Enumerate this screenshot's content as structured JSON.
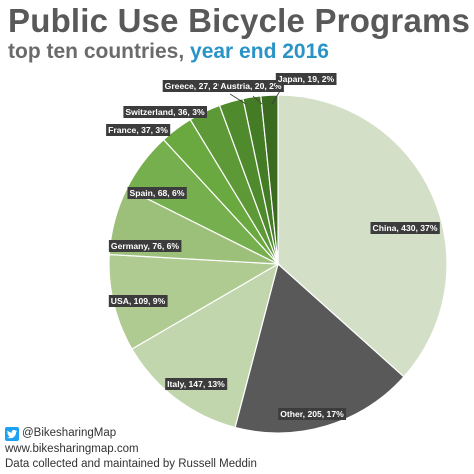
{
  "header": {
    "title": "Public Use Bicycle Programs",
    "subtitle_main": "top ten countries, ",
    "subtitle_highlight": "year end 2016"
  },
  "footer": {
    "twitter_handle": "@BikesharingMap",
    "website": "www.bikesharingmap.com",
    "credit": "Data collected and maintained by Russell Meddin"
  },
  "colors": {
    "title": "#595959",
    "highlight": "#2a94c6",
    "label_bg": "#3c3c3c",
    "twitter": "#1da1f2"
  },
  "chart_data": {
    "type": "pie",
    "title": "Public Use Bicycle Programs",
    "subtitle": "top ten countries, year end 2016",
    "start": "12 o'clock",
    "direction": "clockwise",
    "slices": [
      {
        "category": "China",
        "value": 430,
        "percent": 37,
        "label": "China, 430, 37%",
        "color": "#d3dfc6"
      },
      {
        "category": "Other",
        "value": 205,
        "percent": 17,
        "label": "Other, 205, 17%",
        "color": "#595959"
      },
      {
        "category": "Italy",
        "value": 147,
        "percent": 13,
        "label": "Italy, 147, 13%",
        "color": "#c2d6ae"
      },
      {
        "category": "USA",
        "value": 109,
        "percent": 9,
        "label": "USA, 109, 9%",
        "color": "#afcb91"
      },
      {
        "category": "Germany",
        "value": 76,
        "percent": 6,
        "label": "Germany, 76, 6%",
        "color": "#9cbf7a"
      },
      {
        "category": "Spain",
        "value": 68,
        "percent": 6,
        "label": "Spain, 68, 6%",
        "color": "#76af4d"
      },
      {
        "category": "France",
        "value": 37,
        "percent": 3,
        "label": "France, 37, 3%",
        "color": "#6aa840"
      },
      {
        "category": "Switzerland",
        "value": 36,
        "percent": 3,
        "label": "Switzerland, 36, 3%",
        "color": "#5d9a37"
      },
      {
        "category": "Greece",
        "value": 27,
        "percent": 2,
        "label": "Greece, 27, 2%",
        "color": "#4f8a2d"
      },
      {
        "category": "Austria",
        "value": 20,
        "percent": 2,
        "label": "Austria, 20, 2%",
        "color": "#447c26"
      },
      {
        "category": "Japan",
        "value": 19,
        "percent": 2,
        "label": "Japan, 19, 2%",
        "color": "#3a6b21"
      }
    ]
  }
}
